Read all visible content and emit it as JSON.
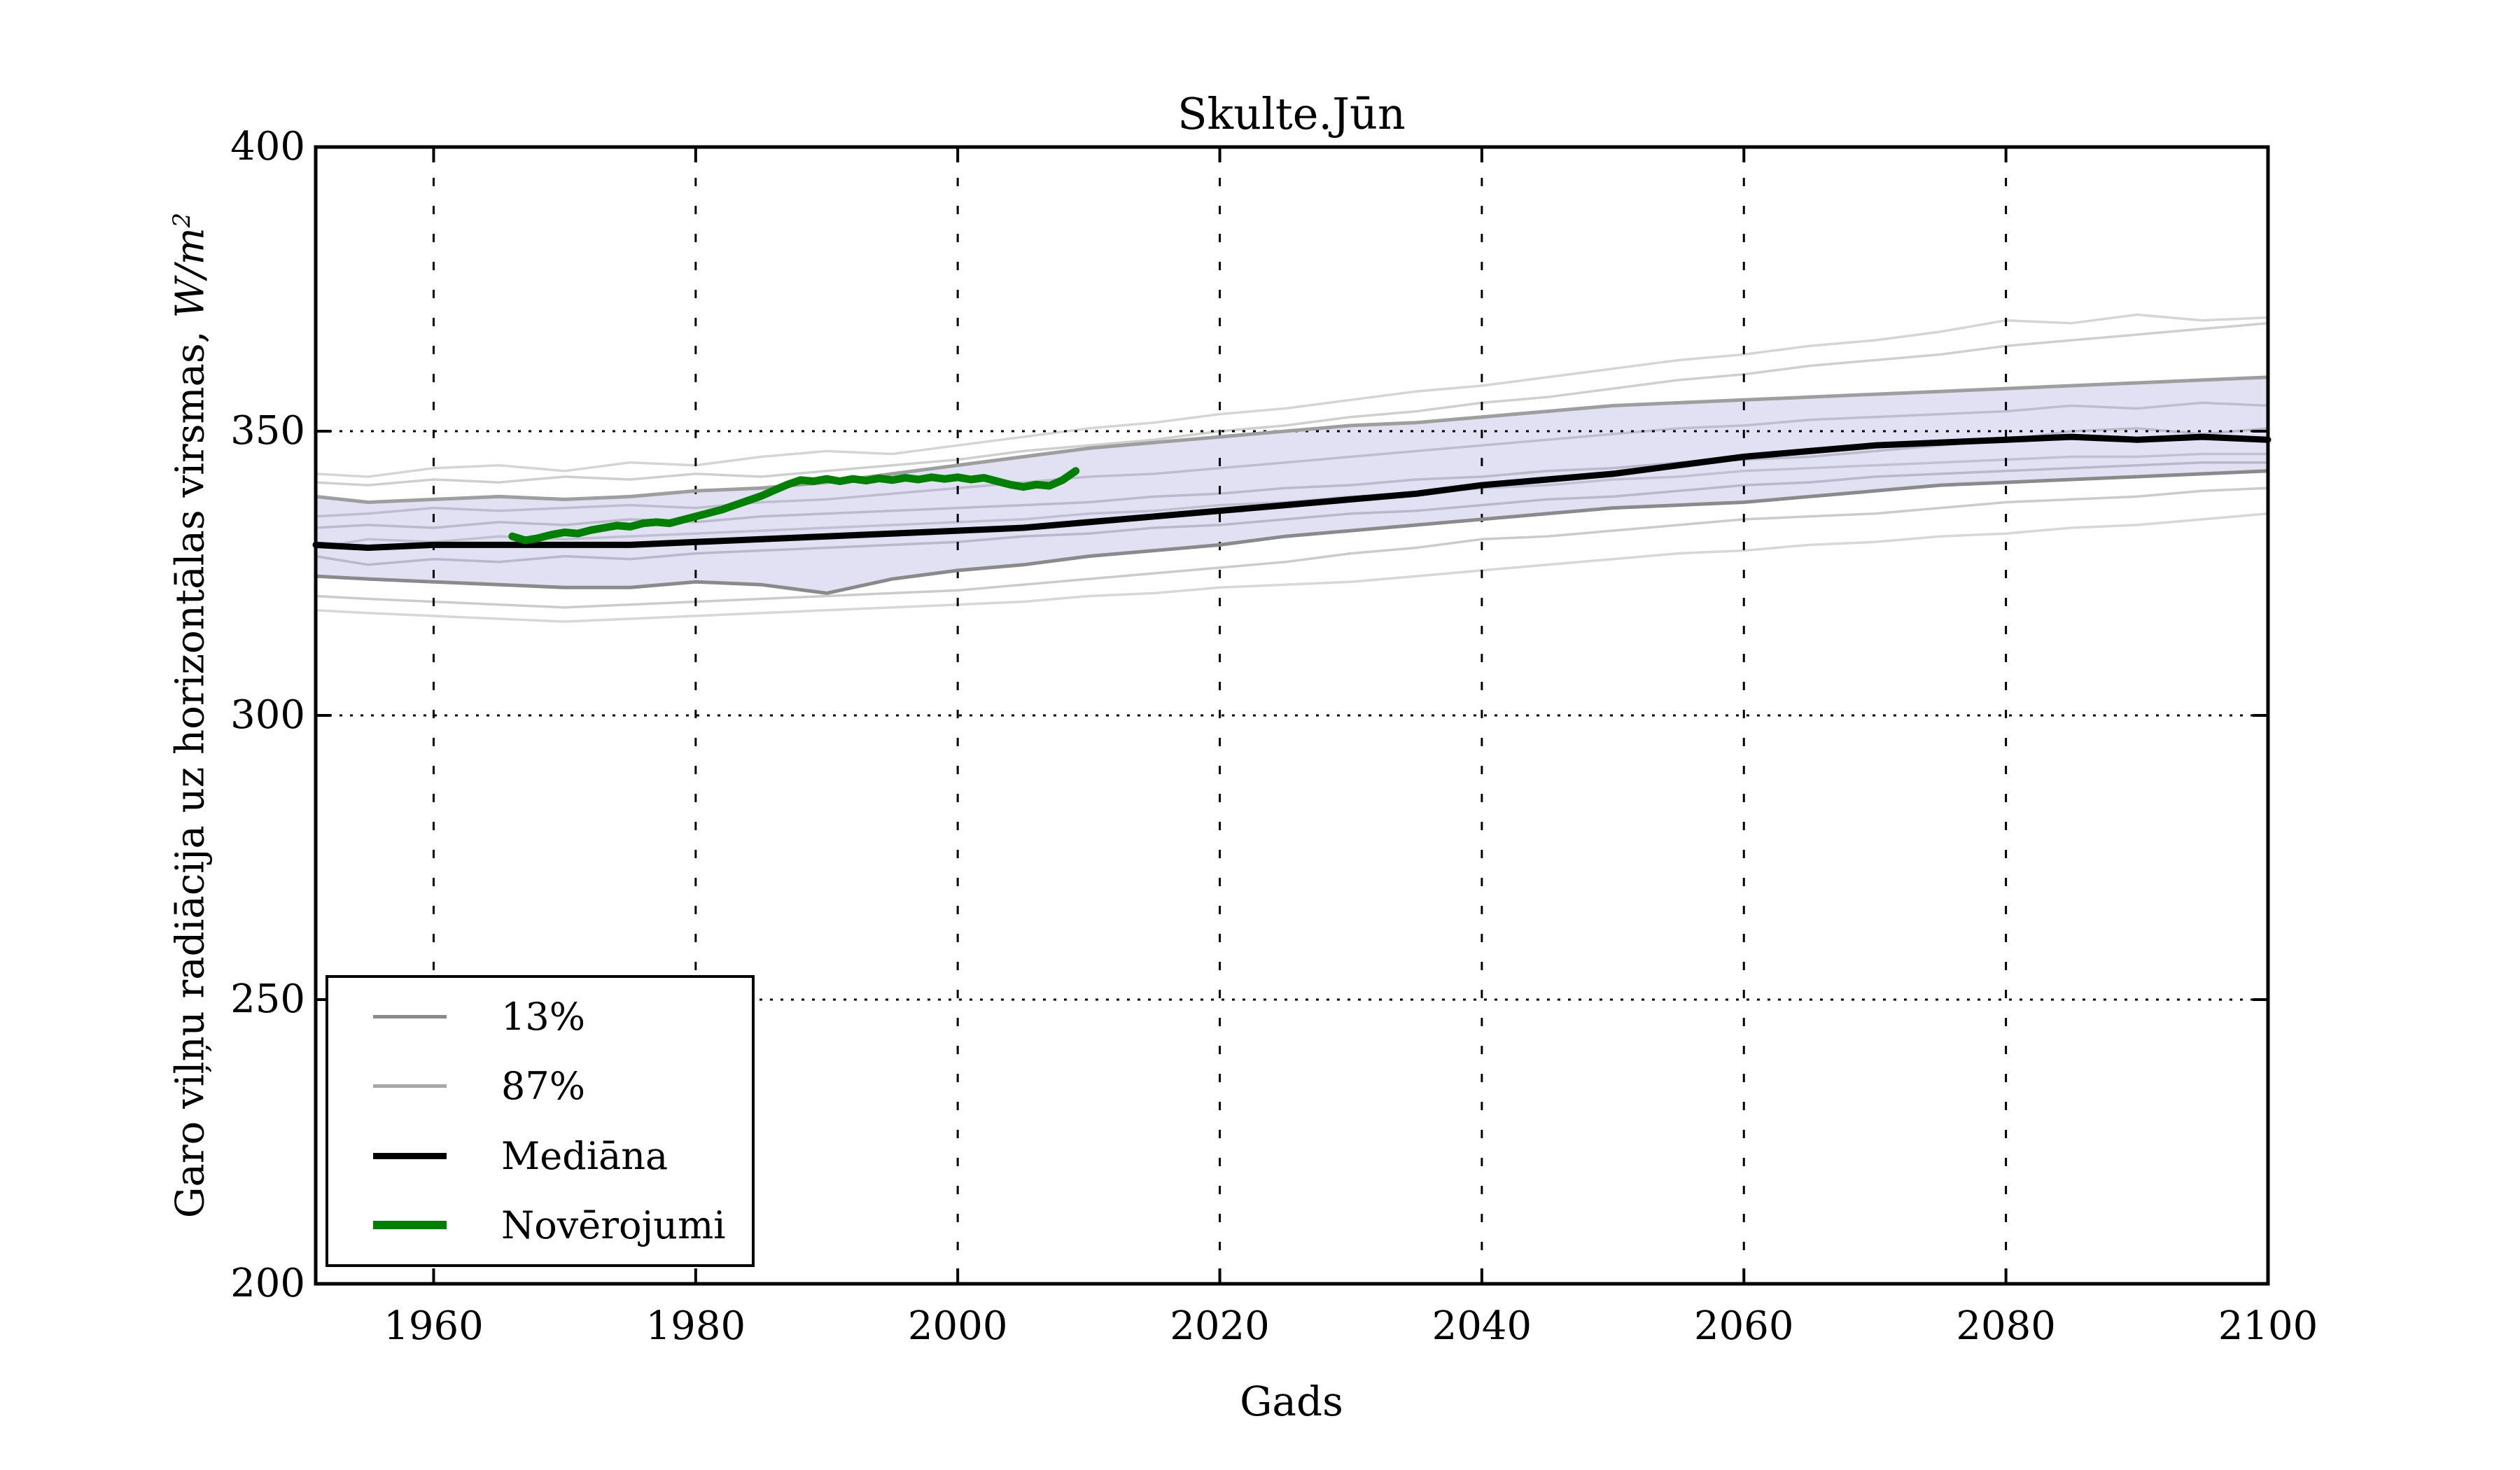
{
  "title": "Skulte.Jūn",
  "axis": {
    "xlabel": "Gads",
    "ylabel": {
      "text": "Garo viļņu radiācija uz horizontālas virsmas, ",
      "units": "W/m",
      "exponent": "2"
    },
    "xtick_labels": [
      "1960",
      "1980",
      "2000",
      "2020",
      "2040",
      "2060",
      "2080",
      "2100"
    ],
    "ytick_labels": [
      "200",
      "250",
      "300",
      "350",
      "400"
    ]
  },
  "legend": {
    "items": [
      {
        "label": "13%",
        "color": "#8a8a8a",
        "thickness": 5
      },
      {
        "label": "87%",
        "color": "#a6a6a6",
        "thickness": 5
      },
      {
        "label": "Mediāna",
        "color": "#000000",
        "thickness": 9
      },
      {
        "label": "Novērojumi",
        "color": "#008000",
        "thickness": 12
      }
    ]
  },
  "chart_data": {
    "type": "line",
    "title": "Skulte.Jūn",
    "xlabel": "Gads",
    "ylabel": "Garo viļņu radiācija uz horizontālas virsmas, W/m2",
    "xlim": [
      1951,
      2100
    ],
    "ylim": [
      200,
      400
    ],
    "xticks": [
      1960,
      1980,
      2000,
      2020,
      2040,
      2060,
      2080,
      2100
    ],
    "yticks": [
      200,
      250,
      300,
      350,
      400
    ],
    "grid_x": [
      1960,
      1980,
      2000,
      2020,
      2040,
      2060,
      2080
    ],
    "grid_y": [
      250,
      300,
      350
    ],
    "grid_style": "dotted",
    "legend_position": "lower-left",
    "band": {
      "fill": "#aaaadd",
      "opacity": 0.35,
      "upper": "87%",
      "lower": "13%"
    },
    "years": [
      1951,
      1955,
      1960,
      1965,
      1970,
      1975,
      1980,
      1985,
      1990,
      1995,
      2000,
      2005,
      2010,
      2015,
      2020,
      2025,
      2030,
      2035,
      2040,
      2045,
      2050,
      2055,
      2060,
      2065,
      2070,
      2075,
      2080,
      2085,
      2090,
      2095,
      2100
    ],
    "series": [
      {
        "name": "ensemble-light-1",
        "role": "light",
        "color": "#d5d5d5",
        "width": 3.5,
        "y": [
          342.5,
          342,
          343.5,
          344,
          343,
          344.5,
          344,
          345.5,
          346.5,
          346,
          347.5,
          349,
          350.5,
          351.5,
          353,
          354,
          355.5,
          357,
          358,
          359.5,
          361,
          362.5,
          363.5,
          365,
          366,
          367.5,
          369.5,
          369,
          370.5,
          369.5,
          370
        ]
      },
      {
        "name": "ensemble-light-2",
        "role": "light",
        "color": "#cfcfcf",
        "width": 3.5,
        "y": [
          341,
          340.5,
          341.5,
          341,
          342,
          341.5,
          342.5,
          342,
          343,
          344,
          345,
          346.5,
          347.5,
          348.5,
          350,
          351,
          352.5,
          353.5,
          355,
          356,
          357.5,
          359,
          360,
          361.5,
          362.5,
          363.5,
          365,
          366,
          367,
          368,
          369
        ]
      },
      {
        "name": "ensemble-light-3",
        "role": "light",
        "color": "#c8c8c8",
        "width": 3.5,
        "y": [
          335,
          335.5,
          336.5,
          336,
          336.5,
          337,
          336.5,
          337.5,
          338,
          339,
          340,
          341,
          342,
          342.5,
          343.5,
          344.5,
          345.5,
          346.5,
          347.5,
          348.5,
          349.5,
          350.5,
          351,
          352,
          352.5,
          353,
          353.5,
          354.5,
          354,
          355,
          354.5
        ]
      },
      {
        "name": "ensemble-light-4",
        "role": "light",
        "color": "#c3c3c3",
        "width": 3.5,
        "y": [
          333,
          333.5,
          333,
          334,
          333.5,
          334.5,
          334,
          335,
          335.5,
          336,
          336.5,
          337,
          337.5,
          338.5,
          339,
          340,
          340.5,
          341.5,
          342,
          343,
          343.5,
          344.5,
          345,
          345.5,
          346.5,
          347.5,
          348.5,
          350,
          350.5,
          349.5,
          350.5
        ]
      },
      {
        "name": "ensemble-light-5",
        "role": "light",
        "color": "#cccccc",
        "width": 3.5,
        "y": [
          329.5,
          331,
          330.5,
          331.5,
          331,
          331.5,
          332,
          332.5,
          333,
          333.5,
          334,
          334.5,
          335.5,
          336,
          337,
          337.5,
          338.5,
          339,
          340,
          340.5,
          341.5,
          342,
          343,
          343.5,
          344,
          344.5,
          345,
          345.5,
          345.5,
          346,
          346
        ]
      },
      {
        "name": "ensemble-light-6",
        "role": "light",
        "color": "#c0c0c0",
        "width": 3.5,
        "y": [
          328,
          326.5,
          327.5,
          327,
          328,
          327.5,
          328.5,
          329,
          329.5,
          330,
          330.5,
          331.5,
          332,
          333,
          333.5,
          334.5,
          335.5,
          336,
          337,
          338,
          338.5,
          339.5,
          340.5,
          341,
          342,
          342.5,
          343,
          343.5,
          344,
          344.5,
          344.5
        ]
      },
      {
        "name": "ensemble-light-7",
        "role": "light",
        "color": "#cbcbcb",
        "width": 3.5,
        "y": [
          321,
          320.5,
          320,
          319.5,
          319,
          319.5,
          320,
          320.5,
          321,
          321.5,
          322,
          323,
          324,
          325,
          326,
          327,
          328.5,
          329.5,
          331,
          331.5,
          332.5,
          333.5,
          334.5,
          335,
          335.5,
          336.5,
          337.5,
          338,
          338.5,
          339.5,
          340
        ]
      },
      {
        "name": "ensemble-light-8",
        "role": "light",
        "color": "#d7d7d7",
        "width": 3.5,
        "y": [
          318.5,
          318,
          317.5,
          317,
          316.5,
          317,
          317.5,
          318,
          318.5,
          319,
          319.5,
          320,
          321,
          321.5,
          322.5,
          323,
          323.5,
          324.5,
          325.5,
          326.5,
          327.5,
          328.5,
          329,
          330,
          330.5,
          331.5,
          332,
          333,
          333.5,
          334.5,
          335.5
        ]
      },
      {
        "name": "87%",
        "role": "band-upper",
        "color": "#9e9e9e",
        "width": 5,
        "y": [
          338.5,
          337.5,
          338,
          338.5,
          338,
          338.5,
          339.5,
          340,
          341,
          342.5,
          344,
          345.5,
          347,
          348,
          349,
          350,
          351,
          351.5,
          352.5,
          353.5,
          354.5,
          355,
          355.5,
          356,
          356.5,
          357,
          357.5,
          358,
          358.5,
          359,
          359.5
        ]
      },
      {
        "name": "13%",
        "role": "band-lower",
        "color": "#8a8a8a",
        "width": 5,
        "y": [
          324.5,
          324,
          323.5,
          323,
          322.5,
          322.5,
          323.5,
          323,
          321.5,
          324,
          325.5,
          326.5,
          328,
          329,
          330,
          331.5,
          332.5,
          333.5,
          334.5,
          335.5,
          336.5,
          337,
          337.5,
          338.5,
          339.5,
          340.5,
          341,
          341.5,
          342,
          342.5,
          343
        ]
      },
      {
        "name": "Mediāna",
        "role": "median",
        "color": "#000000",
        "width": 9,
        "y": [
          330,
          329.5,
          330,
          330,
          330,
          330,
          330.5,
          331,
          331.5,
          332,
          332.5,
          333,
          334,
          335,
          336,
          337,
          338,
          339,
          340.5,
          341.5,
          342.5,
          344,
          345.5,
          346.5,
          347.5,
          348,
          348.5,
          349,
          348.5,
          349,
          348.5
        ]
      }
    ],
    "observations": {
      "name": "Novērojumi",
      "color": "#008000",
      "width": 11,
      "x_start": 1966,
      "x_step": 1,
      "y": [
        331.5,
        330.8,
        331.2,
        331.8,
        332.2,
        332.0,
        332.6,
        333.0,
        333.4,
        333.2,
        333.8,
        334.0,
        333.8,
        334.4,
        335.0,
        335.6,
        336.2,
        337.0,
        337.8,
        338.6,
        339.6,
        340.6,
        341.4,
        341.2,
        341.6,
        341.2,
        341.6,
        341.3,
        341.7,
        341.4,
        341.8,
        341.5,
        341.9,
        341.6,
        341.9,
        341.5,
        341.8,
        341.2,
        340.6,
        340.2,
        340.6,
        340.4,
        341.4,
        343.0
      ]
    }
  }
}
